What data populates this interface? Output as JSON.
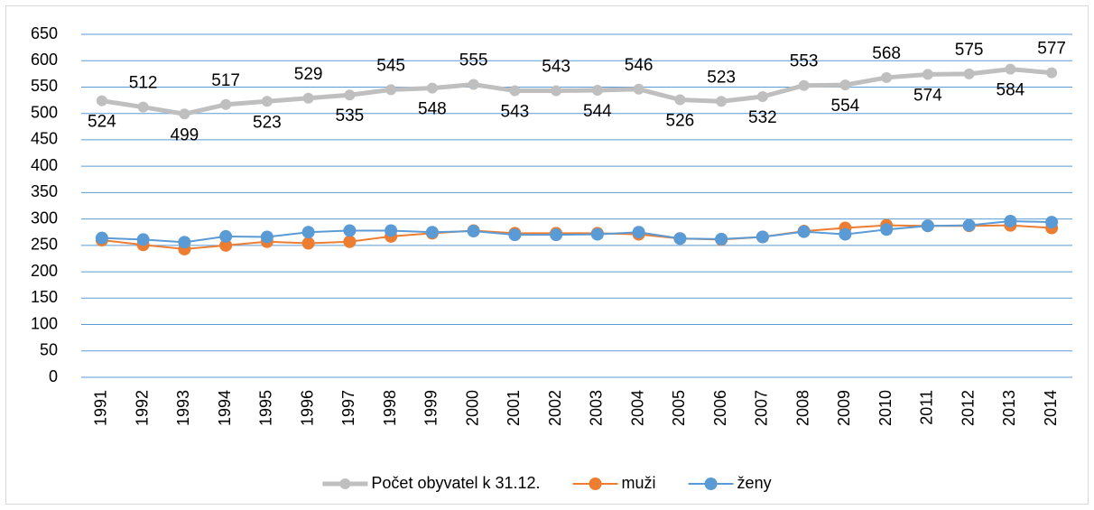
{
  "chart_data": {
    "type": "line",
    "categories": [
      "1991",
      "1992",
      "1993",
      "1994",
      "1995",
      "1996",
      "1997",
      "1998",
      "1999",
      "2000",
      "2001",
      "2002",
      "2003",
      "2004",
      "2005",
      "2006",
      "2007",
      "2008",
      "2009",
      "2010",
      "2011",
      "2012",
      "2013",
      "2014"
    ],
    "series": [
      {
        "name": "Počet obyvatel k 31.12.",
        "color": "#bfbfbf",
        "values": [
          524,
          512,
          499,
          517,
          523,
          529,
          535,
          545,
          548,
          555,
          543,
          543,
          544,
          546,
          526,
          523,
          532,
          553,
          554,
          568,
          574,
          575,
          584,
          577
        ]
      },
      {
        "name": "muži",
        "color": "#ed7d31",
        "values": [
          260,
          251,
          243,
          250,
          257,
          254,
          257,
          267,
          273,
          278,
          273,
          273,
          273,
          271,
          263,
          261,
          266,
          277,
          283,
          288,
          287,
          287,
          288,
          283
        ]
      },
      {
        "name": "ženy",
        "color": "#5b9bd5",
        "values": [
          264,
          261,
          256,
          267,
          266,
          275,
          278,
          278,
          275,
          277,
          270,
          270,
          271,
          275,
          263,
          262,
          266,
          276,
          271,
          280,
          287,
          288,
          296,
          294
        ]
      }
    ],
    "ylim": [
      0,
      650
    ],
    "yticks": [
      0,
      50,
      100,
      150,
      200,
      250,
      300,
      350,
      400,
      450,
      500,
      550,
      600,
      650
    ],
    "grid": true,
    "legend": "bottom"
  }
}
